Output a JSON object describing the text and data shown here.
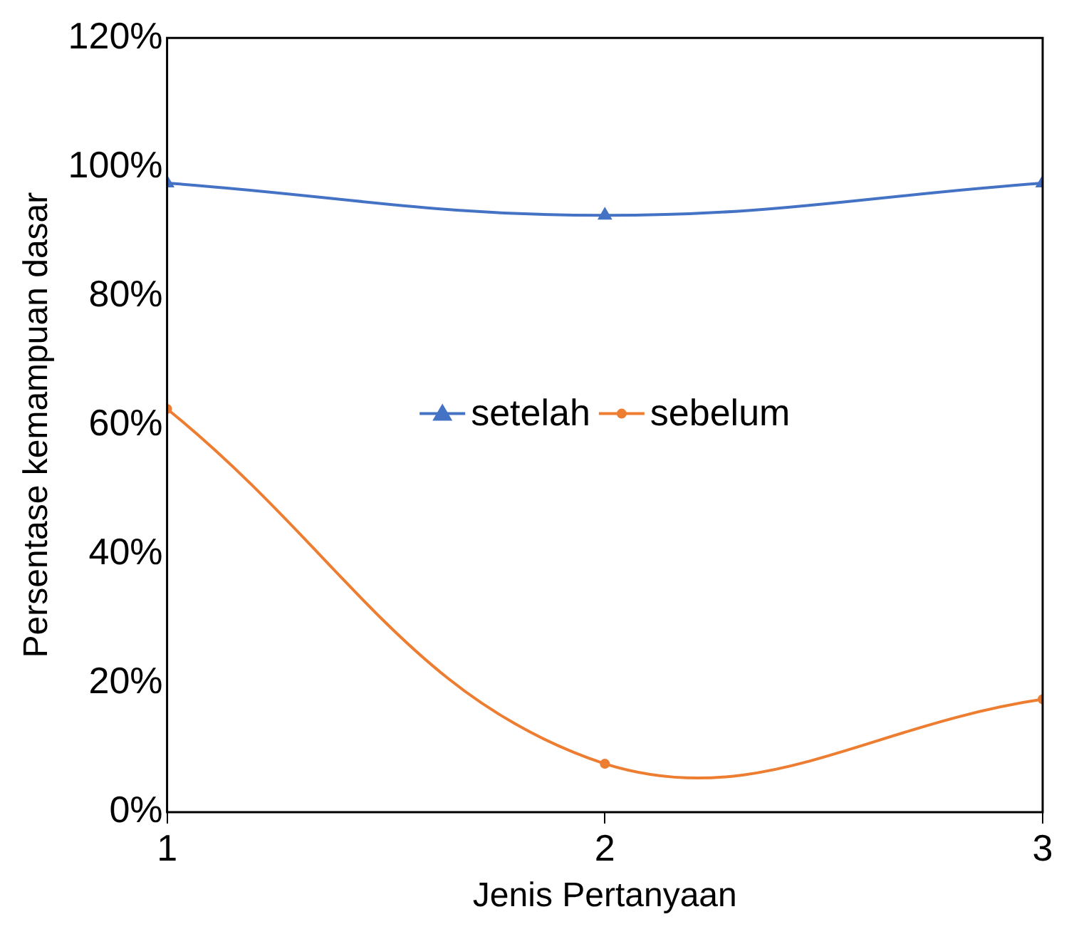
{
  "chart_data": {
    "type": "line",
    "xlabel": "Jenis Pertanyaan",
    "ylabel": "Persentase kemampuan dasar",
    "x": [
      1,
      2,
      3
    ],
    "xlim": [
      1,
      3
    ],
    "xticks": [
      1,
      2,
      3
    ],
    "ylim": [
      0,
      120
    ],
    "yticks": [
      {
        "value": 0,
        "label": "0%"
      },
      {
        "value": 20,
        "label": "20%"
      },
      {
        "value": 40,
        "label": "40%"
      },
      {
        "value": 60,
        "label": "60%"
      },
      {
        "value": 80,
        "label": "80%"
      },
      {
        "value": 100,
        "label": "100%"
      },
      {
        "value": 120,
        "label": "120%"
      }
    ],
    "grid": false,
    "legend": "center",
    "series": [
      {
        "name": "setelah",
        "color": "#4472c4",
        "marker": "triangle",
        "values": [
          97.5,
          92.5,
          97.5
        ]
      },
      {
        "name": "sebelum",
        "color": "#ed7d31",
        "marker": "circle",
        "values": [
          62.5,
          7.5,
          17.5
        ]
      }
    ]
  }
}
